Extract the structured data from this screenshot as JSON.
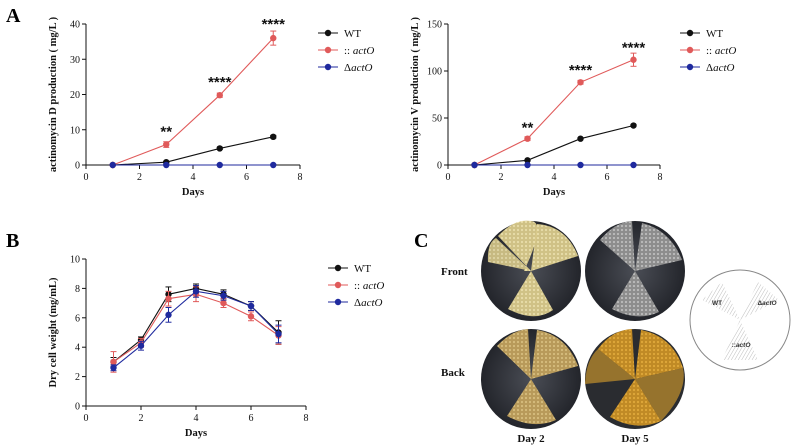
{
  "panel_letters": {
    "a": "A",
    "b": "B",
    "c": "C"
  },
  "colors": {
    "wt": "#111111",
    "act": "#e05a5a",
    "delta": "#1f2a9e"
  },
  "chart_data": [
    {
      "type": "line",
      "panel": "A",
      "xlabel": "Days",
      "ylabel": "actinomycin D production ( mg/L )",
      "xlim": [
        0,
        8
      ],
      "ylim": [
        0,
        40
      ],
      "xticks": [
        0,
        2,
        4,
        6,
        8
      ],
      "yticks": [
        0,
        10,
        20,
        30,
        40
      ],
      "x": [
        1,
        3,
        5,
        7
      ],
      "legend_position": "right",
      "series": [
        {
          "name": "WT",
          "key": "wt",
          "values": [
            0,
            0.8,
            4.7,
            8.0
          ],
          "errors": [
            0,
            0.2,
            0.3,
            0.4
          ]
        },
        {
          "name": ":: actO",
          "key": "act",
          "values": [
            0,
            5.8,
            19.8,
            36.0
          ],
          "errors": [
            0,
            0.8,
            0.6,
            2.0
          ]
        },
        {
          "name": "ΔactO",
          "key": "delta",
          "values": [
            0,
            0,
            0,
            0
          ],
          "errors": [
            0,
            0,
            0,
            0
          ]
        }
      ],
      "annotations": [
        {
          "text": "**",
          "x": 3,
          "y": 9.5
        },
        {
          "text": "****",
          "x": 5,
          "y": 23.5
        },
        {
          "text": "****",
          "x": 7,
          "y": 40
        }
      ]
    },
    {
      "type": "line",
      "panel": "A",
      "xlabel": "Days",
      "ylabel": "actinomycin V production ( mg/L )",
      "xlim": [
        0,
        8
      ],
      "ylim": [
        0,
        150
      ],
      "xticks": [
        0,
        2,
        4,
        6,
        8
      ],
      "yticks": [
        0,
        50,
        100,
        150
      ],
      "x": [
        1,
        3,
        5,
        7
      ],
      "legend_position": "right",
      "series": [
        {
          "name": "WT",
          "key": "wt",
          "values": [
            0,
            5,
            28,
            42
          ],
          "errors": [
            0,
            0.8,
            1.0,
            1.2
          ]
        },
        {
          "name": ":: actO",
          "key": "act",
          "values": [
            0,
            28,
            88,
            112
          ],
          "errors": [
            0,
            2.0,
            2.0,
            7.0
          ]
        },
        {
          "name": "ΔactO",
          "key": "delta",
          "values": [
            0,
            0,
            0,
            0
          ],
          "errors": [
            0,
            0,
            0,
            0
          ]
        }
      ],
      "annotations": [
        {
          "text": "**",
          "x": 3,
          "y": 40
        },
        {
          "text": "****",
          "x": 5,
          "y": 101
        },
        {
          "text": "****",
          "x": 7,
          "y": 125
        }
      ]
    },
    {
      "type": "line",
      "panel": "B",
      "xlabel": "Days",
      "ylabel": "Dry cell weight (mg/mL)",
      "xlim": [
        0,
        8
      ],
      "ylim": [
        0,
        10
      ],
      "xticks": [
        0,
        2,
        4,
        6,
        8
      ],
      "yticks": [
        0,
        2,
        4,
        6,
        8,
        10
      ],
      "x": [
        1,
        2,
        3,
        4,
        5,
        6,
        7
      ],
      "legend_position": "right",
      "series": [
        {
          "name": "WT",
          "key": "wt",
          "values": [
            3.0,
            4.5,
            7.6,
            8.0,
            7.6,
            6.8,
            5.0
          ],
          "errors": [
            0.3,
            0.2,
            0.5,
            0.3,
            0.3,
            0.3,
            0.8
          ]
        },
        {
          "name": ":: actO",
          "key": "act",
          "values": [
            3.0,
            4.3,
            7.3,
            7.6,
            7.0,
            6.1,
            4.8
          ],
          "errors": [
            0.7,
            0.3,
            0.5,
            0.5,
            0.3,
            0.3,
            0.6
          ]
        },
        {
          "name": "ΔactO",
          "key": "delta",
          "values": [
            2.6,
            4.1,
            6.2,
            7.8,
            7.5,
            6.8,
            4.9
          ],
          "errors": [
            0.2,
            0.3,
            0.5,
            0.4,
            0.3,
            0.3,
            0.6
          ]
        }
      ]
    }
  ],
  "photos": {
    "row_labels": [
      "Front",
      "Back"
    ],
    "column_labels": [
      "Day 2",
      "Day 5"
    ],
    "schematic_labels": [
      "WT",
      "ΔactO",
      "::actO"
    ]
  }
}
